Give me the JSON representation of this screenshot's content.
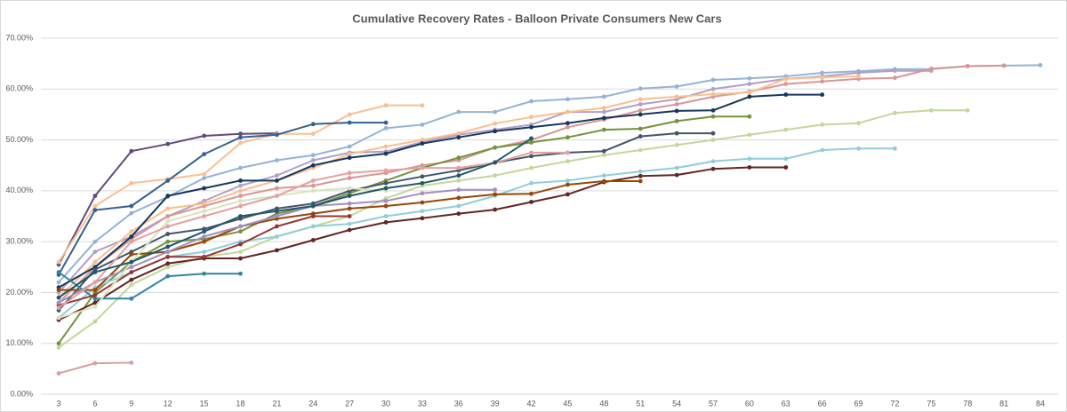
{
  "chart_data": {
    "type": "line",
    "title": "Cumulative Recovery Rates - Balloon Private Consumers New Cars",
    "categories": [
      3,
      6,
      9,
      12,
      15,
      18,
      21,
      24,
      27,
      30,
      33,
      36,
      39,
      42,
      45,
      48,
      51,
      54,
      57,
      60,
      63,
      66,
      69,
      72,
      75,
      78,
      81,
      84
    ],
    "ylim": [
      0,
      70
    ],
    "yticks": [
      {
        "value": 0,
        "label": "0.00%"
      },
      {
        "value": 10,
        "label": "10.00%"
      },
      {
        "value": 20,
        "label": "20.00%"
      },
      {
        "value": 30,
        "label": "30.00%"
      },
      {
        "value": 40,
        "label": "40.00%"
      },
      {
        "value": 50,
        "label": "50.00%"
      },
      {
        "value": 60,
        "label": "60.00%"
      },
      {
        "value": 70,
        "label": "70.00%"
      }
    ],
    "grid": true,
    "series": [
      {
        "color": "#d9a0a0",
        "values": [
          4.1,
          6.1,
          6.2,
          null,
          null,
          null,
          null,
          null,
          null,
          null,
          null,
          null,
          null,
          null,
          null,
          null,
          null,
          null,
          null,
          null,
          null,
          null,
          null,
          null,
          null,
          null,
          null,
          null
        ]
      },
      {
        "color": "#604a7b",
        "values": [
          25.5,
          39,
          47.8,
          49.2,
          50.8,
          51.2,
          51.3,
          null,
          null,
          null,
          null,
          null,
          null,
          null,
          null,
          null,
          null,
          null,
          null,
          null,
          null,
          null,
          null,
          null,
          null,
          null,
          null,
          null
        ]
      },
      {
        "color": "#fac090",
        "values": [
          26,
          37,
          41.5,
          42.3,
          43.3,
          49.4,
          51.2,
          51.2,
          55,
          56.8,
          56.8,
          null,
          null,
          null,
          null,
          null,
          null,
          null,
          null,
          null,
          null,
          null,
          null,
          null,
          null,
          null,
          null,
          null
        ]
      },
      {
        "color": "#366092",
        "values": [
          23.5,
          36.2,
          37,
          42,
          47.2,
          50.5,
          51,
          53.1,
          53.4,
          53.4,
          null,
          null,
          null,
          null,
          null,
          null,
          null,
          null,
          null,
          null,
          null,
          null,
          null,
          null,
          null,
          null,
          null,
          null
        ]
      },
      {
        "color": "#95b3d7",
        "values": [
          22,
          30,
          35.6,
          38.8,
          42.5,
          44.5,
          46,
          47,
          48.7,
          52.3,
          53,
          55.5,
          55.5,
          57.6,
          58,
          58.5,
          60.1,
          60.5,
          61.8,
          62.1,
          62.5,
          63.2,
          63.5,
          63.9,
          63.9,
          64.5,
          64.6,
          64.7
        ]
      },
      {
        "color": "#b1a0c7",
        "values": [
          20,
          28,
          31,
          35,
          38,
          41,
          43,
          46,
          47.5,
          47.7,
          49.6,
          51,
          52,
          53,
          55.5,
          55.5,
          57,
          58,
          60,
          61,
          62,
          62.5,
          63.2,
          63.6,
          63.6,
          null,
          null,
          null
        ]
      },
      {
        "color": "#da9694",
        "values": [
          18,
          25,
          30.5,
          35,
          37,
          39,
          40.5,
          41,
          42.5,
          43.5,
          45,
          46,
          48.5,
          50,
          52.5,
          54,
          55.8,
          57,
          58.5,
          59.5,
          61,
          61.5,
          62,
          62.2,
          64,
          64.5,
          64.6,
          null
        ]
      },
      {
        "color": "#fabf8f",
        "values": [
          19,
          26,
          32,
          36.5,
          37.5,
          40,
          42,
          44.5,
          47.2,
          48.7,
          50,
          51.3,
          53.2,
          54.5,
          55.5,
          56.3,
          58,
          58.5,
          59,
          59.3,
          62,
          62.3,
          62.5,
          null,
          null,
          null,
          null,
          null
        ]
      },
      {
        "color": "#17375e",
        "values": [
          21,
          25,
          31,
          39,
          40.5,
          42,
          42,
          45,
          46.5,
          47.3,
          49.3,
          50.5,
          51.7,
          52.5,
          53.3,
          54.3,
          55,
          55.7,
          55.8,
          58.5,
          58.9,
          58.9,
          null,
          null,
          null,
          null,
          null,
          null
        ]
      },
      {
        "color": "#76933c",
        "values": [
          10,
          20,
          26,
          30,
          30.5,
          32,
          35.5,
          37,
          39.5,
          42,
          44.5,
          46.5,
          48.5,
          49.5,
          50.5,
          52,
          52.2,
          53.7,
          54.6,
          54.6,
          null,
          null,
          null,
          null,
          null,
          null,
          null,
          null
        ]
      },
      {
        "color": "#c4d79b",
        "values": [
          9.2,
          14.3,
          21.5,
          25,
          27,
          28,
          31,
          33,
          35,
          38.5,
          41,
          42,
          43,
          44.5,
          45.8,
          47,
          48,
          49,
          50,
          51,
          52,
          53,
          53.3,
          55.3,
          55.8,
          55.8,
          null,
          null
        ]
      },
      {
        "color": "#44546a",
        "values": [
          16.5,
          24.5,
          28,
          31.5,
          32.5,
          34.5,
          36.5,
          37.5,
          40,
          41.5,
          42.8,
          44,
          45.5,
          46.8,
          47.5,
          47.8,
          50.7,
          51.3,
          51.3,
          null,
          null,
          null,
          null,
          null,
          null,
          null,
          null,
          null
        ]
      },
      {
        "color": "#92cddc",
        "values": [
          15,
          21,
          24,
          27,
          28,
          30,
          31,
          33,
          33.5,
          35,
          36,
          37,
          39,
          41.5,
          42,
          43,
          43.8,
          44.5,
          45.8,
          46.3,
          46.3,
          48,
          48.3,
          48.3,
          null,
          null,
          null,
          null
        ]
      },
      {
        "color": "#632523",
        "values": [
          14.6,
          18,
          22.5,
          25.7,
          26.7,
          26.7,
          28.3,
          30.3,
          32.3,
          33.8,
          34.6,
          35.5,
          36.3,
          37.8,
          39.3,
          41.7,
          42.9,
          43.1,
          44.3,
          44.6,
          44.6,
          null,
          null,
          null,
          null,
          null,
          null,
          null
        ]
      },
      {
        "color": "#974706",
        "values": [
          20.5,
          20.5,
          27.5,
          28,
          30,
          33,
          34.5,
          35.5,
          36.5,
          37,
          37.7,
          38.6,
          39.3,
          39.4,
          41.2,
          41.9,
          41.9,
          null,
          null,
          null,
          null,
          null,
          null,
          null,
          null,
          null,
          null,
          null
        ]
      },
      {
        "color": "#31859c",
        "values": [
          24,
          18.8,
          18.8,
          23.2,
          23.7,
          23.7,
          null,
          null,
          null,
          null,
          null,
          null,
          null,
          null,
          null,
          null,
          null,
          null,
          null,
          null,
          null,
          null,
          null,
          null,
          null,
          null,
          null,
          null
        ]
      },
      {
        "color": "#953735",
        "values": [
          17.5,
          19.5,
          24,
          27,
          27,
          29.5,
          33,
          35,
          35,
          null,
          null,
          null,
          null,
          null,
          null,
          null,
          null,
          null,
          null,
          null,
          null,
          null,
          null,
          null,
          null,
          null,
          null,
          null
        ]
      },
      {
        "color": "#a28fbf",
        "values": [
          18,
          22,
          25,
          28,
          31,
          33,
          35,
          37,
          37.5,
          38,
          39.5,
          40.2,
          40.2,
          null,
          null,
          null,
          null,
          null,
          null,
          null,
          null,
          null,
          null,
          null,
          null,
          null,
          null,
          null
        ]
      },
      {
        "color": "#d7e4bc",
        "values": [
          15,
          17.2,
          26,
          34,
          36,
          38,
          39,
          40,
          40.5,
          40,
          null,
          null,
          null,
          null,
          null,
          null,
          null,
          null,
          null,
          null,
          null,
          null,
          null,
          null,
          null,
          null,
          null,
          null
        ]
      },
      {
        "color": "#e6a0a0",
        "values": [
          17,
          22,
          30,
          33,
          35,
          37,
          39,
          42,
          43.5,
          44,
          44.5,
          44.5,
          45.5,
          47.5,
          47.5,
          null,
          null,
          null,
          null,
          null,
          null,
          null,
          null,
          null,
          null,
          null,
          null,
          null
        ]
      },
      {
        "color": "#215968",
        "values": [
          19,
          24,
          26,
          29,
          32,
          35,
          36,
          37,
          39,
          40.5,
          41.5,
          43,
          45.6,
          50.3,
          null,
          null,
          null,
          null,
          null,
          null,
          null,
          null,
          null,
          null,
          null,
          null,
          null,
          null
        ]
      }
    ]
  }
}
